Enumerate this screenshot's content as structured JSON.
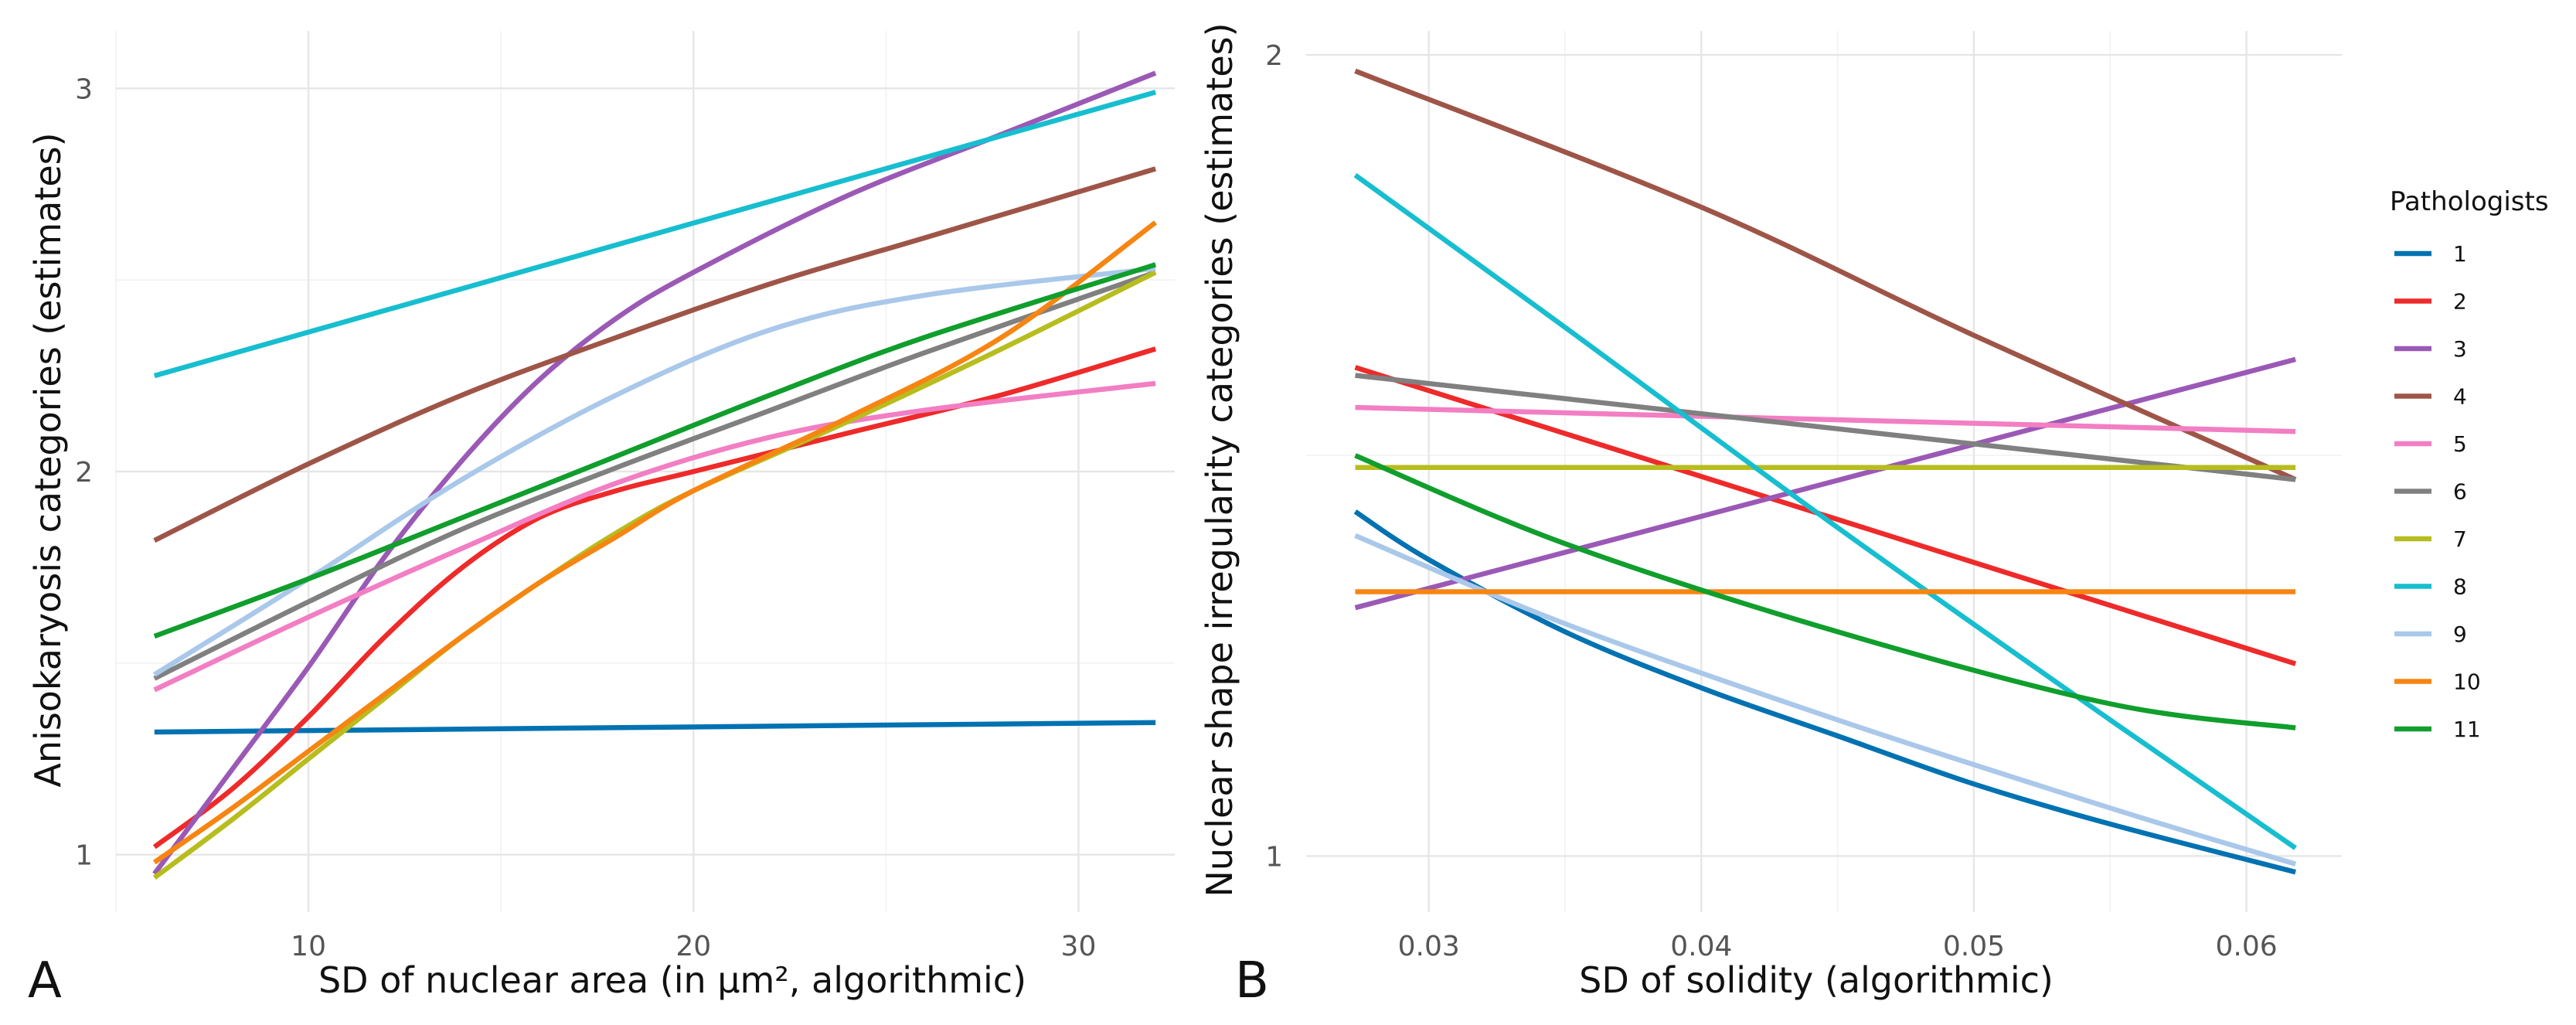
{
  "colors": {
    "1": "#0072b2",
    "2": "#ee2a2a",
    "3": "#9b59b6",
    "4": "#9e5548",
    "5": "#f27ec3",
    "6": "#808080",
    "7": "#b7bd1e",
    "8": "#17becf",
    "9": "#a9c8ea",
    "10": "#f68512",
    "11": "#109e2c"
  },
  "legend": {
    "title": "Pathologists",
    "entries": [
      "1",
      "2",
      "3",
      "4",
      "5",
      "6",
      "7",
      "8",
      "9",
      "10",
      "11"
    ]
  },
  "chart_data": [
    {
      "type": "line",
      "panel_label": "A",
      "title": "",
      "xlabel": "SD of nuclear area (in µm², algorithmic)",
      "ylabel": "Anisokaryosis categories (estimates)",
      "xlim": [
        5,
        32.5
      ],
      "ylim": [
        0.85,
        3.15
      ],
      "xticks": [
        10,
        20,
        30
      ],
      "xtick_labels": [
        "10",
        "20",
        "30"
      ],
      "yticks": [
        1,
        2,
        3
      ],
      "ytick_labels": [
        "1",
        "2",
        "3"
      ],
      "grid": true,
      "series": [
        {
          "name": "1",
          "x": [
            6,
            32
          ],
          "values": [
            1.32,
            1.345
          ]
        },
        {
          "name": "2",
          "x": [
            6,
            8,
            10,
            12,
            14,
            16,
            18,
            20,
            24,
            28,
            32
          ],
          "values": [
            1.02,
            1.17,
            1.36,
            1.57,
            1.75,
            1.88,
            1.95,
            2.0,
            2.1,
            2.2,
            2.32
          ]
        },
        {
          "name": "3",
          "x": [
            6,
            8,
            10,
            12,
            14,
            16,
            18,
            20,
            24,
            28,
            32
          ],
          "values": [
            0.95,
            1.22,
            1.49,
            1.78,
            2.03,
            2.24,
            2.4,
            2.52,
            2.72,
            2.88,
            3.04
          ]
        },
        {
          "name": "4",
          "x": [
            6,
            10,
            14,
            18,
            22,
            26,
            32
          ],
          "values": [
            1.82,
            2.02,
            2.2,
            2.35,
            2.49,
            2.61,
            2.79
          ]
        },
        {
          "name": "5",
          "x": [
            6,
            10,
            14,
            18,
            22,
            26,
            32
          ],
          "values": [
            1.43,
            1.62,
            1.8,
            1.97,
            2.09,
            2.16,
            2.23
          ]
        },
        {
          "name": "6",
          "x": [
            6,
            10,
            14,
            18,
            22,
            26,
            32
          ],
          "values": [
            1.46,
            1.66,
            1.85,
            2.01,
            2.16,
            2.31,
            2.52
          ]
        },
        {
          "name": "7",
          "x": [
            6,
            8,
            10,
            12,
            14,
            16,
            18,
            20,
            24,
            28,
            32
          ],
          "values": [
            0.94,
            1.09,
            1.25,
            1.41,
            1.57,
            1.71,
            1.84,
            1.95,
            2.13,
            2.32,
            2.52
          ]
        },
        {
          "name": "8",
          "x": [
            6,
            32
          ],
          "values": [
            2.25,
            2.99
          ]
        },
        {
          "name": "9",
          "x": [
            6,
            10,
            14,
            18,
            22,
            26,
            32
          ],
          "values": [
            1.47,
            1.72,
            1.98,
            2.2,
            2.37,
            2.46,
            2.53
          ]
        },
        {
          "name": "10",
          "x": [
            6,
            8,
            10,
            12,
            14,
            16,
            18,
            20,
            24,
            28,
            32
          ],
          "values": [
            0.98,
            1.12,
            1.27,
            1.42,
            1.57,
            1.71,
            1.83,
            1.95,
            2.14,
            2.35,
            2.65
          ]
        },
        {
          "name": "11",
          "x": [
            6,
            10,
            14,
            18,
            22,
            26,
            32
          ],
          "values": [
            1.57,
            1.72,
            1.88,
            2.04,
            2.2,
            2.35,
            2.54
          ]
        }
      ]
    },
    {
      "type": "line",
      "panel_label": "B",
      "title": "",
      "xlabel": "SD of solidity (algorithmic)",
      "ylabel": "Nuclear shape irregularity categories (estimates)",
      "xlim": [
        0.0255,
        0.0635
      ],
      "ylim": [
        0.93,
        2.03
      ],
      "xticks": [
        0.03,
        0.04,
        0.05,
        0.06
      ],
      "xtick_labels": [
        "0.03",
        "0.04",
        "0.05",
        "0.06"
      ],
      "yticks": [
        1,
        2
      ],
      "ytick_labels": [
        "1",
        "2"
      ],
      "grid": true,
      "series": [
        {
          "name": "1",
          "x": [
            0.0273,
            0.03,
            0.035,
            0.04,
            0.045,
            0.05,
            0.055,
            0.0618
          ],
          "values": [
            1.43,
            1.37,
            1.28,
            1.21,
            1.15,
            1.09,
            1.04,
            0.98
          ]
        },
        {
          "name": "2",
          "x": [
            0.0273,
            0.0618
          ],
          "values": [
            1.61,
            1.24
          ]
        },
        {
          "name": "3",
          "x": [
            0.0273,
            0.0618
          ],
          "values": [
            1.31,
            1.62
          ]
        },
        {
          "name": "4",
          "x": [
            0.0273,
            0.04,
            0.05,
            0.0618
          ],
          "values": [
            1.98,
            1.81,
            1.65,
            1.47
          ]
        },
        {
          "name": "5",
          "x": [
            0.0273,
            0.0618
          ],
          "values": [
            1.56,
            1.53
          ]
        },
        {
          "name": "6",
          "x": [
            0.0273,
            0.0618
          ],
          "values": [
            1.6,
            1.47
          ]
        },
        {
          "name": "7",
          "x": [
            0.0273,
            0.0618
          ],
          "values": [
            1.485,
            1.485
          ]
        },
        {
          "name": "8",
          "x": [
            0.0273,
            0.035,
            0.045,
            0.055,
            0.0618
          ],
          "values": [
            1.85,
            1.66,
            1.41,
            1.17,
            1.01
          ]
        },
        {
          "name": "9",
          "x": [
            0.0273,
            0.035,
            0.045,
            0.055,
            0.0618
          ],
          "values": [
            1.4,
            1.29,
            1.17,
            1.06,
            0.99
          ]
        },
        {
          "name": "10",
          "x": [
            0.0273,
            0.0618
          ],
          "values": [
            1.33,
            1.33
          ]
        },
        {
          "name": "11",
          "x": [
            0.0273,
            0.035,
            0.045,
            0.055,
            0.0618
          ],
          "values": [
            1.5,
            1.39,
            1.28,
            1.19,
            1.16
          ]
        }
      ]
    }
  ]
}
